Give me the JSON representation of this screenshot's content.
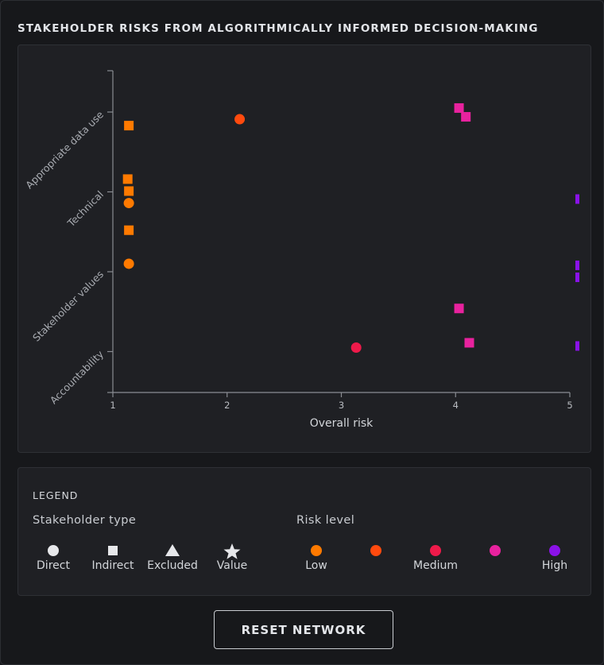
{
  "title": "STAKEHOLDER RISKS FROM ALGORITHMICALLY INFORMED DECISION-MAKING",
  "chart_data": {
    "type": "scatter",
    "xlabel": "Overall risk",
    "ylabel": "",
    "xlim": [
      1,
      5
    ],
    "x_ticks": [
      "1",
      "2",
      "3",
      "4",
      "5"
    ],
    "categories": [
      "Appropriate data use",
      "Technical",
      "Stakeholder values",
      "Accountability"
    ],
    "grid": false,
    "points": [
      {
        "x": 1.14,
        "category": "Appropriate data use",
        "offset": 0.17,
        "shape": "square",
        "color": "#ff7a00"
      },
      {
        "x": 2.11,
        "category": "Appropriate data use",
        "offset": 0.09,
        "shape": "circle",
        "color": "#ff4a0e"
      },
      {
        "x": 4.03,
        "category": "Appropriate data use",
        "offset": -0.05,
        "shape": "square",
        "color": "#e8229e"
      },
      {
        "x": 4.09,
        "category": "Appropriate data use",
        "offset": 0.06,
        "shape": "square",
        "color": "#e8229e"
      },
      {
        "x": 1.13,
        "category": "Technical",
        "offset": -0.16,
        "shape": "square",
        "color": "#ff7a00"
      },
      {
        "x": 1.14,
        "category": "Technical",
        "offset": -0.01,
        "shape": "square",
        "color": "#ff7a00"
      },
      {
        "x": 1.14,
        "category": "Technical",
        "offset": 0.14,
        "shape": "circle",
        "color": "#ff7a00"
      },
      {
        "x": 1.14,
        "category": "Technical",
        "offset": 0.48,
        "shape": "square",
        "color": "#ff7a00"
      },
      {
        "x": 5.07,
        "category": "Technical",
        "offset": 0.09,
        "shape": "square",
        "color": "#8a12e8"
      },
      {
        "x": 1.14,
        "category": "Stakeholder values",
        "offset": -0.1,
        "shape": "circle",
        "color": "#ff7a00"
      },
      {
        "x": 5.07,
        "category": "Stakeholder values",
        "offset": -0.08,
        "shape": "square",
        "color": "#8a12e8"
      },
      {
        "x": 5.07,
        "category": "Stakeholder values",
        "offset": 0.07,
        "shape": "square",
        "color": "#8a12e8"
      },
      {
        "x": 4.03,
        "category": "Stakeholder values",
        "offset": 0.46,
        "shape": "square",
        "color": "#e8229e"
      },
      {
        "x": 4.12,
        "category": "Accountability",
        "offset": -0.11,
        "shape": "square",
        "color": "#e8229e"
      },
      {
        "x": 3.13,
        "category": "Accountability",
        "offset": -0.05,
        "shape": "circle",
        "color": "#ee1a4a"
      },
      {
        "x": 5.07,
        "category": "Accountability",
        "offset": -0.07,
        "shape": "square",
        "color": "#8a12e8"
      }
    ]
  },
  "legend": {
    "title": "LEGEND",
    "stakeholder_type": {
      "label": "Stakeholder type",
      "items": [
        {
          "label": "Direct",
          "icon": "circle-icon"
        },
        {
          "label": "Indirect",
          "icon": "square-icon"
        },
        {
          "label": "Excluded",
          "icon": "triangle-icon"
        },
        {
          "label": "Value",
          "icon": "star-icon"
        }
      ]
    },
    "risk_level": {
      "label": "Risk level",
      "items": [
        {
          "label": "Low",
          "color": "#ff7a00"
        },
        {
          "label": "",
          "color": "#ff4a0e"
        },
        {
          "label": "Medium",
          "color": "#ee1a4a"
        },
        {
          "label": "",
          "color": "#e8229e"
        },
        {
          "label": "High",
          "color": "#8a12e8"
        }
      ]
    }
  },
  "reset_button": {
    "label": "RESET NETWORK"
  }
}
